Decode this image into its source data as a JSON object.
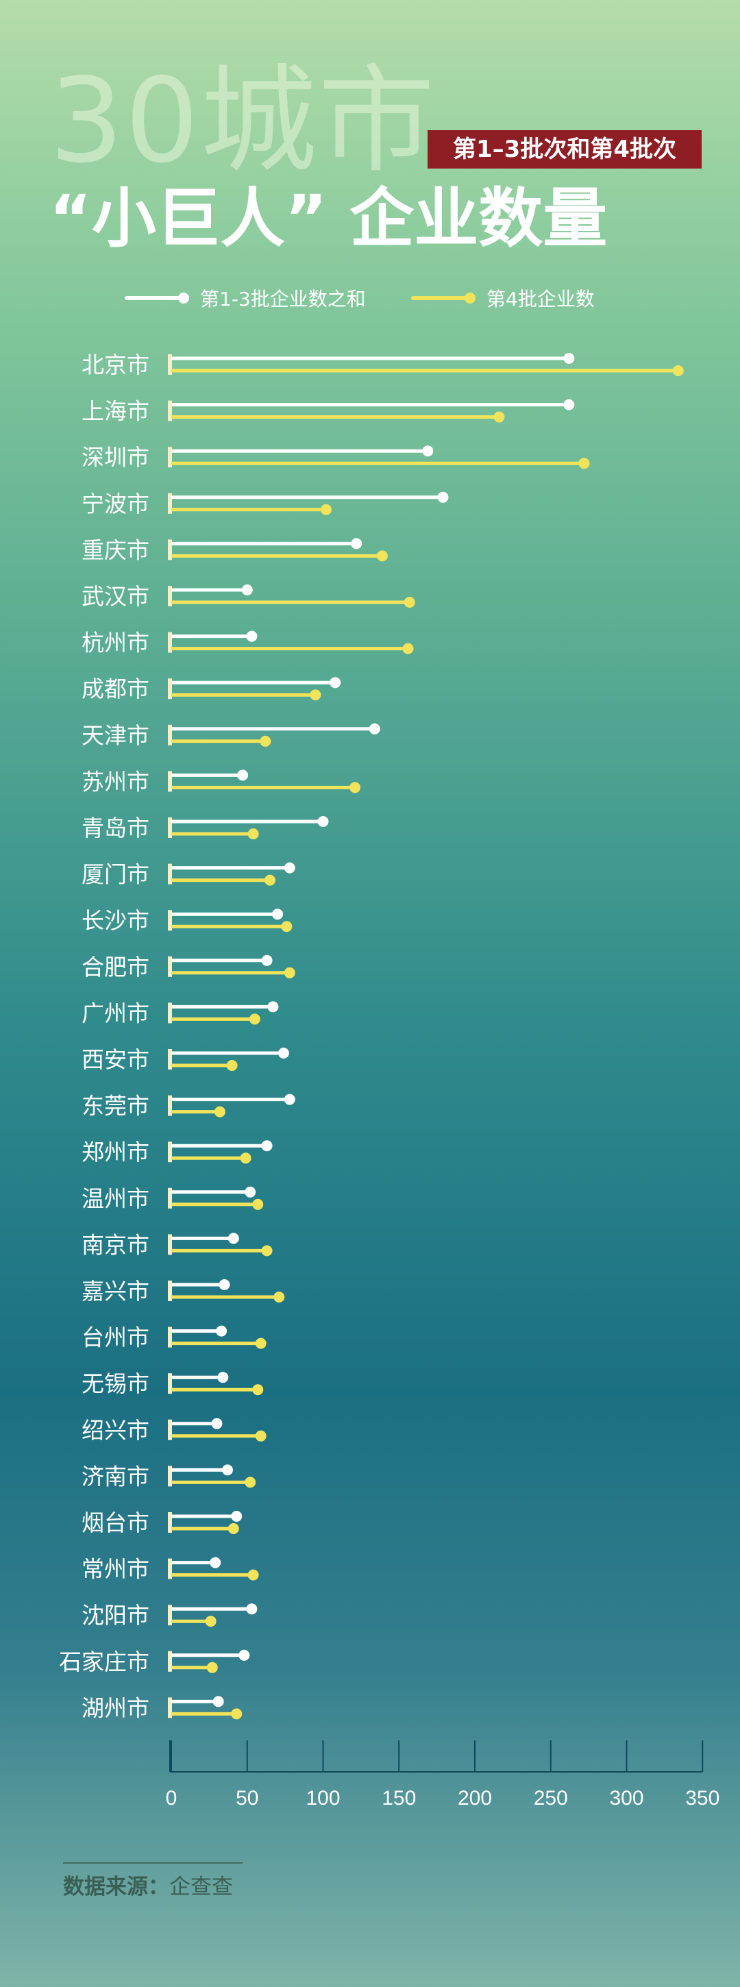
{
  "header": {
    "title_big": "30城市",
    "badge": "第1–3批次和第4批次",
    "title_main": "“小巨人” 企业数量"
  },
  "legend": {
    "series1": "第1-3批企业数之和",
    "series2": "第4批企业数"
  },
  "colors": {
    "series1": "#ffffff",
    "series2": "#f2e45a",
    "badge": "#8e1d24"
  },
  "chart_data": {
    "type": "bar",
    "orientation": "horizontal",
    "categories": [
      "北京市",
      "上海市",
      "深圳市",
      "宁波市",
      "重庆市",
      "武汉市",
      "杭州市",
      "成都市",
      "天津市",
      "苏州市",
      "青岛市",
      "厦门市",
      "长沙市",
      "合肥市",
      "广州市",
      "西安市",
      "东莞市",
      "郑州市",
      "温州市",
      "南京市",
      "嘉兴市",
      "台州市",
      "无锡市",
      "绍兴市",
      "济南市",
      "烟台市",
      "常州市",
      "沈阳市",
      "石家庄市",
      "湖州市"
    ],
    "series": [
      {
        "name": "第1-3批企业数之和",
        "values": [
          262,
          262,
          169,
          179,
          122,
          50,
          53,
          108,
          134,
          47,
          100,
          78,
          70,
          63,
          67,
          74,
          78,
          63,
          52,
          41,
          35,
          33,
          34,
          30,
          37,
          43,
          29,
          53,
          48,
          31
        ]
      },
      {
        "name": "第4批企业数",
        "values": [
          334,
          216,
          272,
          102,
          139,
          157,
          156,
          95,
          62,
          121,
          54,
          65,
          76,
          78,
          55,
          40,
          32,
          49,
          57,
          63,
          71,
          59,
          57,
          59,
          52,
          41,
          54,
          26,
          27,
          43
        ]
      }
    ],
    "xticks": [
      "0",
      "50",
      "100",
      "150",
      "200",
      "250",
      "300",
      "350"
    ],
    "xlim": [
      0,
      350
    ],
    "grid": false,
    "legend_position": "top"
  },
  "source": {
    "label": "数据来源：",
    "value": "企查查"
  }
}
